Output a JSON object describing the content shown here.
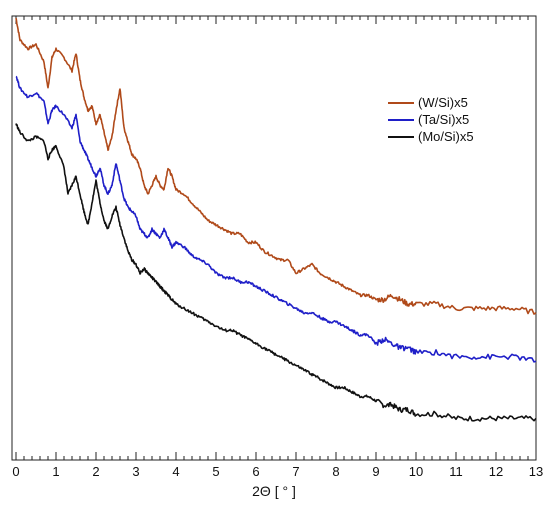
{
  "chart_data": {
    "type": "line",
    "title": "",
    "xlabel": "2Θ [ ° ]",
    "ylabel": "",
    "xlim": [
      0,
      13
    ],
    "ylim": [
      0,
      1
    ],
    "x_ticks": [
      "0",
      "1",
      "2",
      "3",
      "4",
      "5",
      "6",
      "7",
      "8",
      "9",
      "10",
      "11",
      "12",
      "13"
    ],
    "grid": false,
    "legend_position": "right",
    "series": [
      {
        "name": "(W/Si)x5",
        "color": "#b04a1a",
        "points": [
          [
            0,
            1.0
          ],
          [
            0.1,
            0.95
          ],
          [
            0.3,
            0.93
          ],
          [
            0.5,
            0.94
          ],
          [
            0.7,
            0.9
          ],
          [
            0.8,
            0.84
          ],
          [
            0.9,
            0.91
          ],
          [
            1.0,
            0.93
          ],
          [
            1.2,
            0.91
          ],
          [
            1.4,
            0.88
          ],
          [
            1.5,
            0.92
          ],
          [
            1.6,
            0.86
          ],
          [
            1.7,
            0.82
          ],
          [
            1.8,
            0.79
          ],
          [
            1.9,
            0.8
          ],
          [
            2.0,
            0.76
          ],
          [
            2.1,
            0.78
          ],
          [
            2.2,
            0.74
          ],
          [
            2.3,
            0.7
          ],
          [
            2.4,
            0.73
          ],
          [
            2.5,
            0.79
          ],
          [
            2.6,
            0.84
          ],
          [
            2.7,
            0.75
          ],
          [
            2.8,
            0.72
          ],
          [
            2.9,
            0.69
          ],
          [
            3.0,
            0.68
          ],
          [
            3.1,
            0.66
          ],
          [
            3.2,
            0.62
          ],
          [
            3.3,
            0.6
          ],
          [
            3.4,
            0.62
          ],
          [
            3.5,
            0.64
          ],
          [
            3.6,
            0.62
          ],
          [
            3.7,
            0.61
          ],
          [
            3.8,
            0.66
          ],
          [
            3.9,
            0.64
          ],
          [
            4.0,
            0.61
          ],
          [
            4.2,
            0.6
          ],
          [
            4.4,
            0.58
          ],
          [
            4.6,
            0.56
          ],
          [
            4.8,
            0.54
          ],
          [
            5.0,
            0.53
          ],
          [
            5.2,
            0.52
          ],
          [
            5.4,
            0.51
          ],
          [
            5.6,
            0.51
          ],
          [
            5.8,
            0.49
          ],
          [
            6.0,
            0.49
          ],
          [
            6.2,
            0.47
          ],
          [
            6.4,
            0.46
          ],
          [
            6.6,
            0.45
          ],
          [
            6.8,
            0.45
          ],
          [
            7.0,
            0.42
          ],
          [
            7.2,
            0.43
          ],
          [
            7.4,
            0.44
          ],
          [
            7.6,
            0.42
          ],
          [
            7.8,
            0.41
          ],
          [
            8.0,
            0.4
          ],
          [
            8.2,
            0.39
          ],
          [
            8.4,
            0.38
          ],
          [
            8.6,
            0.37
          ],
          [
            8.8,
            0.37
          ],
          [
            9.0,
            0.36
          ],
          [
            9.2,
            0.36
          ],
          [
            9.4,
            0.37
          ],
          [
            9.6,
            0.36
          ],
          [
            9.8,
            0.35
          ],
          [
            10.0,
            0.35
          ],
          [
            10.5,
            0.35
          ],
          [
            11.0,
            0.34
          ],
          [
            11.5,
            0.34
          ],
          [
            12.0,
            0.34
          ],
          [
            12.5,
            0.34
          ],
          [
            13.0,
            0.33
          ]
        ]
      },
      {
        "name": "(Ta/Si)x5",
        "color": "#1f1fc8",
        "points": [
          [
            0,
            0.87
          ],
          [
            0.1,
            0.84
          ],
          [
            0.3,
            0.82
          ],
          [
            0.5,
            0.83
          ],
          [
            0.7,
            0.81
          ],
          [
            0.8,
            0.76
          ],
          [
            0.9,
            0.79
          ],
          [
            1.0,
            0.8
          ],
          [
            1.2,
            0.78
          ],
          [
            1.4,
            0.75
          ],
          [
            1.5,
            0.78
          ],
          [
            1.6,
            0.72
          ],
          [
            1.7,
            0.7
          ],
          [
            1.8,
            0.68
          ],
          [
            1.9,
            0.66
          ],
          [
            2.0,
            0.64
          ],
          [
            2.1,
            0.66
          ],
          [
            2.2,
            0.62
          ],
          [
            2.3,
            0.6
          ],
          [
            2.4,
            0.62
          ],
          [
            2.5,
            0.67
          ],
          [
            2.6,
            0.63
          ],
          [
            2.7,
            0.59
          ],
          [
            2.8,
            0.57
          ],
          [
            2.9,
            0.56
          ],
          [
            3.0,
            0.55
          ],
          [
            3.1,
            0.52
          ],
          [
            3.2,
            0.51
          ],
          [
            3.3,
            0.5
          ],
          [
            3.4,
            0.52
          ],
          [
            3.5,
            0.51
          ],
          [
            3.6,
            0.5
          ],
          [
            3.7,
            0.52
          ],
          [
            3.8,
            0.5
          ],
          [
            3.9,
            0.48
          ],
          [
            4.0,
            0.49
          ],
          [
            4.2,
            0.48
          ],
          [
            4.4,
            0.46
          ],
          [
            4.6,
            0.45
          ],
          [
            4.8,
            0.44
          ],
          [
            5.0,
            0.42
          ],
          [
            5.2,
            0.41
          ],
          [
            5.4,
            0.41
          ],
          [
            5.6,
            0.4
          ],
          [
            5.8,
            0.4
          ],
          [
            6.0,
            0.39
          ],
          [
            6.2,
            0.38
          ],
          [
            6.4,
            0.37
          ],
          [
            6.6,
            0.36
          ],
          [
            6.8,
            0.35
          ],
          [
            7.0,
            0.34
          ],
          [
            7.2,
            0.33
          ],
          [
            7.4,
            0.33
          ],
          [
            7.6,
            0.32
          ],
          [
            7.8,
            0.31
          ],
          [
            8.0,
            0.31
          ],
          [
            8.2,
            0.3
          ],
          [
            8.4,
            0.29
          ],
          [
            8.6,
            0.28
          ],
          [
            8.8,
            0.28
          ],
          [
            9.0,
            0.26
          ],
          [
            9.2,
            0.27
          ],
          [
            9.4,
            0.26
          ],
          [
            9.6,
            0.25
          ],
          [
            9.8,
            0.25
          ],
          [
            10.0,
            0.24
          ],
          [
            10.5,
            0.24
          ],
          [
            11.0,
            0.23
          ],
          [
            11.5,
            0.23
          ],
          [
            12.0,
            0.23
          ],
          [
            12.5,
            0.23
          ],
          [
            13.0,
            0.22
          ]
        ]
      },
      {
        "name": "(Mo/Si)x5",
        "color": "#111111",
        "points": [
          [
            0,
            0.76
          ],
          [
            0.1,
            0.74
          ],
          [
            0.3,
            0.72
          ],
          [
            0.5,
            0.73
          ],
          [
            0.7,
            0.72
          ],
          [
            0.8,
            0.68
          ],
          [
            0.9,
            0.7
          ],
          [
            1.0,
            0.71
          ],
          [
            1.2,
            0.66
          ],
          [
            1.3,
            0.6
          ],
          [
            1.4,
            0.62
          ],
          [
            1.5,
            0.64
          ],
          [
            1.6,
            0.6
          ],
          [
            1.7,
            0.56
          ],
          [
            1.8,
            0.53
          ],
          [
            1.9,
            0.58
          ],
          [
            2.0,
            0.63
          ],
          [
            2.1,
            0.58
          ],
          [
            2.2,
            0.54
          ],
          [
            2.3,
            0.52
          ],
          [
            2.4,
            0.55
          ],
          [
            2.5,
            0.57
          ],
          [
            2.6,
            0.53
          ],
          [
            2.7,
            0.5
          ],
          [
            2.8,
            0.47
          ],
          [
            2.9,
            0.45
          ],
          [
            3.0,
            0.44
          ],
          [
            3.1,
            0.42
          ],
          [
            3.2,
            0.43
          ],
          [
            3.3,
            0.42
          ],
          [
            3.4,
            0.41
          ],
          [
            3.5,
            0.4
          ],
          [
            3.6,
            0.39
          ],
          [
            3.7,
            0.38
          ],
          [
            3.8,
            0.37
          ],
          [
            3.9,
            0.36
          ],
          [
            4.0,
            0.35
          ],
          [
            4.2,
            0.34
          ],
          [
            4.4,
            0.33
          ],
          [
            4.6,
            0.32
          ],
          [
            4.8,
            0.31
          ],
          [
            5.0,
            0.3
          ],
          [
            5.2,
            0.29
          ],
          [
            5.4,
            0.29
          ],
          [
            5.6,
            0.28
          ],
          [
            5.8,
            0.27
          ],
          [
            6.0,
            0.26
          ],
          [
            6.2,
            0.25
          ],
          [
            6.4,
            0.24
          ],
          [
            6.6,
            0.23
          ],
          [
            6.8,
            0.22
          ],
          [
            7.0,
            0.21
          ],
          [
            7.2,
            0.2
          ],
          [
            7.4,
            0.19
          ],
          [
            7.6,
            0.18
          ],
          [
            7.8,
            0.17
          ],
          [
            8.0,
            0.16
          ],
          [
            8.2,
            0.16
          ],
          [
            8.4,
            0.15
          ],
          [
            8.6,
            0.14
          ],
          [
            8.8,
            0.14
          ],
          [
            9.0,
            0.13
          ],
          [
            9.2,
            0.12
          ],
          [
            9.4,
            0.12
          ],
          [
            9.6,
            0.11
          ],
          [
            9.8,
            0.11
          ],
          [
            10.0,
            0.1
          ],
          [
            10.5,
            0.1
          ],
          [
            11.0,
            0.09
          ],
          [
            11.5,
            0.09
          ],
          [
            12.0,
            0.09
          ],
          [
            12.5,
            0.09
          ],
          [
            13.0,
            0.09
          ]
        ]
      }
    ]
  }
}
